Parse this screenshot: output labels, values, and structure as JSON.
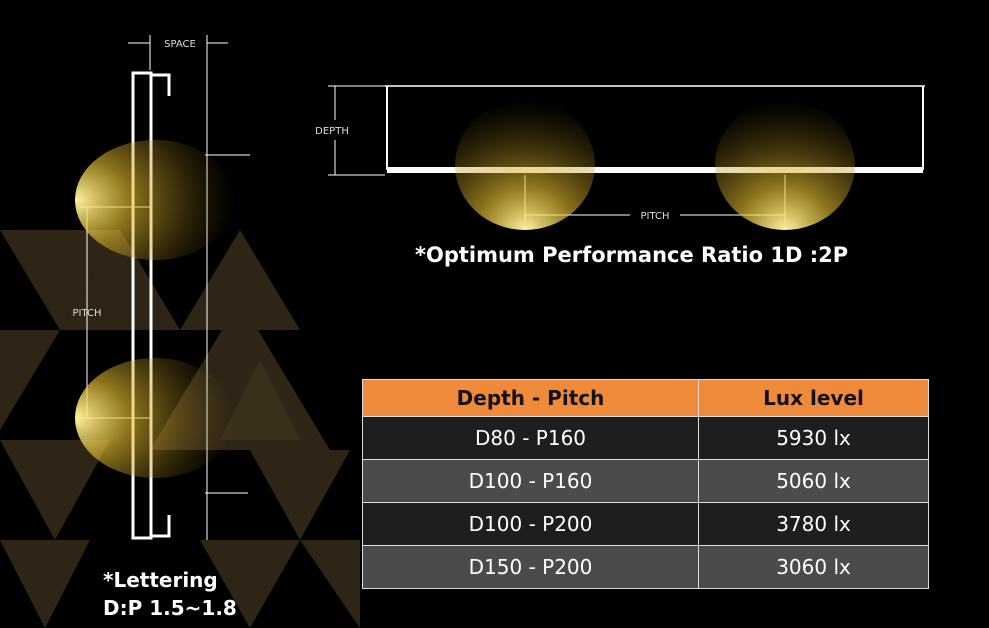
{
  "labels": {
    "space": "SPACE",
    "side_pitch": "PITCH",
    "depth": "DEPTH",
    "top_pitch": "PITCH"
  },
  "ratio_note": "*Optimum Performance Ratio 1D :2P",
  "lettering_note": [
    "*Lettering",
    "D:P 1.5~1.8"
  ],
  "table": {
    "headers": [
      "Depth - Pitch",
      "Lux level"
    ],
    "rows": [
      [
        "D80 - P160",
        "5930 lx"
      ],
      [
        "D100 - P160",
        "5060 lx"
      ],
      [
        "D100 - P200",
        "3780 lx"
      ],
      [
        "D150 - P200",
        "3060 lx"
      ]
    ]
  }
}
